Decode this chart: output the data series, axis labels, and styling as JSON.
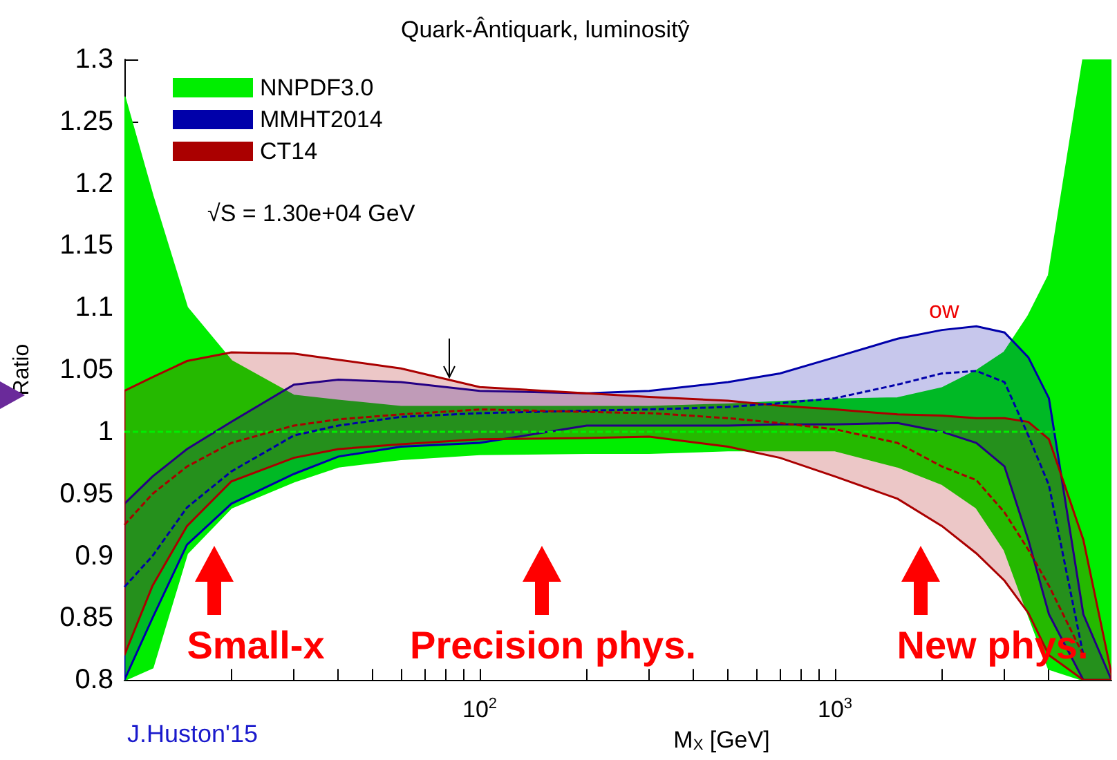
{
  "chart_data": {
    "type": "line",
    "title": "Quark-Ântiquark, luminositŷ",
    "xlabel": "M$_{X}$ [GeV]",
    "ylabel": "Ratio",
    "log": "x",
    "xlim": [
      10,
      6000
    ],
    "ylim": [
      0.8,
      1.3
    ],
    "xticks": [
      {
        "value": 20,
        "label": null
      },
      {
        "value": 30,
        "label": null
      },
      {
        "value": 40,
        "label": null
      },
      {
        "value": 50,
        "label": null
      },
      {
        "value": 60,
        "label": null
      },
      {
        "value": 70,
        "label": null
      },
      {
        "value": 80,
        "label": null
      },
      {
        "value": 90,
        "label": null
      },
      {
        "value": 100,
        "label": "10$^{2}$"
      },
      {
        "value": 200,
        "label": null
      },
      {
        "value": 300,
        "label": null
      },
      {
        "value": 400,
        "label": null
      },
      {
        "value": 500,
        "label": null
      },
      {
        "value": 600,
        "label": null
      },
      {
        "value": 700,
        "label": null
      },
      {
        "value": 800,
        "label": null
      },
      {
        "value": 900,
        "label": null
      },
      {
        "value": 1000,
        "label": "10$^{3}$"
      },
      {
        "value": 2000,
        "label": null
      },
      {
        "value": 3000,
        "label": null
      },
      {
        "value": 4000,
        "label": null
      },
      {
        "value": 5000,
        "label": null
      }
    ],
    "yticks": [
      0.8,
      0.85,
      0.9,
      0.95,
      1,
      1.05,
      1.1,
      1.15,
      1.2,
      1.25,
      1.3
    ],
    "x": [
      10,
      12,
      15,
      20,
      30,
      40,
      60,
      100,
      200,
      300,
      500,
      700,
      1000,
      1500,
      2000,
      2500,
      3000,
      3500,
      4000,
      5000,
      6000
    ],
    "series": [
      {
        "name": "NNPDF3.0",
        "color": "#00ee00",
        "values": [
          1,
          1,
          1,
          1,
          1,
          1,
          1,
          1,
          1,
          1,
          1,
          1,
          1,
          1,
          1,
          1,
          1,
          1,
          1,
          1,
          1
        ],
        "upper": [
          1.27,
          1.19,
          1.1,
          1.057,
          1.029,
          1.025,
          1.02,
          1.02,
          1.02,
          1.02,
          1.022,
          1.024,
          1.026,
          1.027,
          1.035,
          1.049,
          1.064,
          1.093,
          1.126,
          1.3,
          1.3
        ],
        "lower": [
          0.8,
          0.81,
          0.902,
          0.939,
          0.96,
          0.972,
          0.978,
          0.982,
          0.983,
          0.983,
          0.985,
          0.985,
          0.985,
          0.972,
          0.958,
          0.939,
          0.905,
          0.853,
          0.809,
          0.8,
          0.8
        ]
      },
      {
        "name": "MMHT2014",
        "color": "#0000aa",
        "values": [
          0.875,
          0.9,
          0.939,
          0.968,
          0.997,
          1.005,
          1.012,
          1.015,
          1.017,
          1.018,
          1.02,
          1.023,
          1.027,
          1.038,
          1.047,
          1.049,
          1.04,
          0.997,
          0.957,
          0.82,
          null
        ],
        "upper": [
          0.942,
          0.964,
          0.986,
          1.008,
          1.038,
          1.042,
          1.04,
          1.033,
          1.031,
          1.033,
          1.04,
          1.047,
          1.06,
          1.075,
          1.082,
          1.085,
          1.08,
          1.06,
          1.027,
          0.853,
          0.8
        ],
        "lower": [
          0.8,
          0.85,
          0.909,
          0.942,
          0.966,
          0.98,
          0.988,
          0.991,
          1.005,
          1.005,
          1.005,
          1.006,
          1.006,
          1.007,
          1,
          0.991,
          0.972,
          0.913,
          0.853,
          0.8,
          0.8
        ]
      },
      {
        "name": "CT14",
        "color": "#aa0000",
        "values": [
          0.925,
          0.95,
          0.972,
          0.991,
          1.005,
          1.01,
          1.014,
          1.018,
          1.016,
          1.015,
          1.011,
          1.007,
          1.002,
          0.991,
          0.972,
          0.961,
          0.935,
          0.905,
          0.876,
          0.82,
          null
        ],
        "upper": [
          1.033,
          1.044,
          1.057,
          1.064,
          1.063,
          1.058,
          1.051,
          1.036,
          1.031,
          1.028,
          1.025,
          1.021,
          1.018,
          1.014,
          1.013,
          1.011,
          1.011,
          1.008,
          0.994,
          0.913,
          0.805
        ],
        "lower": [
          0.82,
          0.876,
          0.924,
          0.96,
          0.979,
          0.986,
          0.99,
          0.994,
          0.995,
          0.996,
          0.988,
          0.979,
          0.964,
          0.946,
          0.924,
          0.902,
          0.88,
          0.854,
          0.82,
          0.8,
          0.8
        ]
      }
    ],
    "line_style": "dashed",
    "marker": "none",
    "legend": "top left",
    "grid": false,
    "annotations": [
      "Small-x",
      "Precision phys.",
      "New phys.",
      "√S = 1.30e+04 GeV",
      "J.Huston'15",
      "ow"
    ]
  }
}
